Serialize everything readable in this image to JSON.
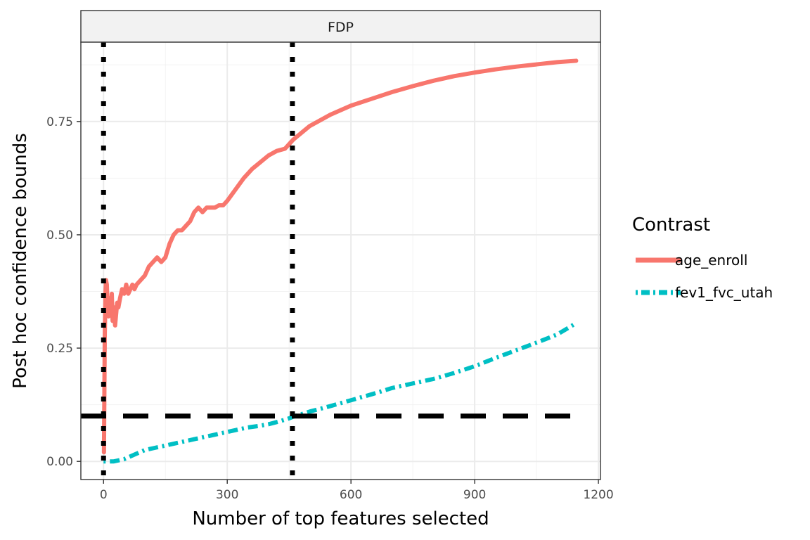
{
  "chart_data": {
    "type": "line",
    "strip_label": "FDP",
    "xlabel": "Number of top features selected",
    "ylabel": "Post hoc confidence bounds",
    "xlim": [
      -55,
      1205
    ],
    "ylim": [
      -0.04,
      0.925
    ],
    "x_ticks": [
      0,
      300,
      600,
      900,
      1200
    ],
    "x_tick_labels": [
      "0",
      "300",
      "600",
      "900",
      "1200"
    ],
    "y_ticks": [
      0.0,
      0.25,
      0.5,
      0.75
    ],
    "y_tick_labels": [
      "0.00",
      "0.25",
      "0.50",
      "0.75"
    ],
    "grid": true,
    "legend": {
      "title": "Contrast",
      "position": "right",
      "entries": [
        "age_enroll",
        "fev1_fvc_utah"
      ]
    },
    "reference_lines": [
      {
        "orientation": "horizontal",
        "value": 0.1,
        "style": "dashed"
      },
      {
        "orientation": "vertical",
        "value": 0,
        "style": "dotted"
      },
      {
        "orientation": "vertical",
        "value": 458,
        "style": "dotted"
      }
    ],
    "series": [
      {
        "name": "age_enroll",
        "color": "#F8766D",
        "style": "solid",
        "x": [
          1,
          2,
          3,
          4,
          5,
          6,
          8,
          10,
          12,
          15,
          18,
          20,
          22,
          25,
          28,
          30,
          33,
          36,
          40,
          45,
          50,
          55,
          60,
          65,
          70,
          75,
          80,
          90,
          100,
          110,
          120,
          130,
          140,
          150,
          160,
          170,
          180,
          190,
          200,
          210,
          220,
          230,
          240,
          250,
          260,
          270,
          280,
          290,
          300,
          320,
          340,
          360,
          380,
          400,
          420,
          440,
          460,
          500,
          550,
          600,
          650,
          700,
          750,
          800,
          850,
          900,
          950,
          1000,
          1050,
          1100,
          1146
        ],
        "values": [
          0.02,
          0.15,
          0.28,
          0.33,
          0.38,
          0.4,
          0.39,
          0.34,
          0.32,
          0.36,
          0.33,
          0.37,
          0.31,
          0.34,
          0.3,
          0.32,
          0.35,
          0.34,
          0.36,
          0.38,
          0.37,
          0.39,
          0.37,
          0.38,
          0.39,
          0.38,
          0.39,
          0.4,
          0.41,
          0.43,
          0.44,
          0.45,
          0.44,
          0.45,
          0.48,
          0.5,
          0.51,
          0.51,
          0.52,
          0.53,
          0.55,
          0.56,
          0.55,
          0.56,
          0.56,
          0.56,
          0.565,
          0.565,
          0.575,
          0.6,
          0.625,
          0.645,
          0.66,
          0.675,
          0.685,
          0.69,
          0.71,
          0.74,
          0.765,
          0.785,
          0.8,
          0.815,
          0.828,
          0.84,
          0.85,
          0.858,
          0.865,
          0.871,
          0.876,
          0.881,
          0.884
        ]
      },
      {
        "name": "fev1_fvc_utah",
        "color": "#00BFC4",
        "style": "dotdash",
        "x": [
          0,
          25,
          50,
          75,
          100,
          125,
          150,
          175,
          200,
          225,
          250,
          275,
          300,
          325,
          350,
          375,
          400,
          425,
          450,
          458,
          500,
          550,
          600,
          650,
          700,
          750,
          800,
          850,
          900,
          950,
          1000,
          1050,
          1100,
          1146
        ],
        "values": [
          0.0,
          0.0,
          0.005,
          0.015,
          0.025,
          0.03,
          0.035,
          0.04,
          0.045,
          0.05,
          0.055,
          0.06,
          0.065,
          0.07,
          0.075,
          0.078,
          0.082,
          0.088,
          0.095,
          0.098,
          0.11,
          0.122,
          0.135,
          0.148,
          0.162,
          0.172,
          0.182,
          0.195,
          0.21,
          0.228,
          0.245,
          0.262,
          0.28,
          0.305
        ]
      }
    ]
  }
}
